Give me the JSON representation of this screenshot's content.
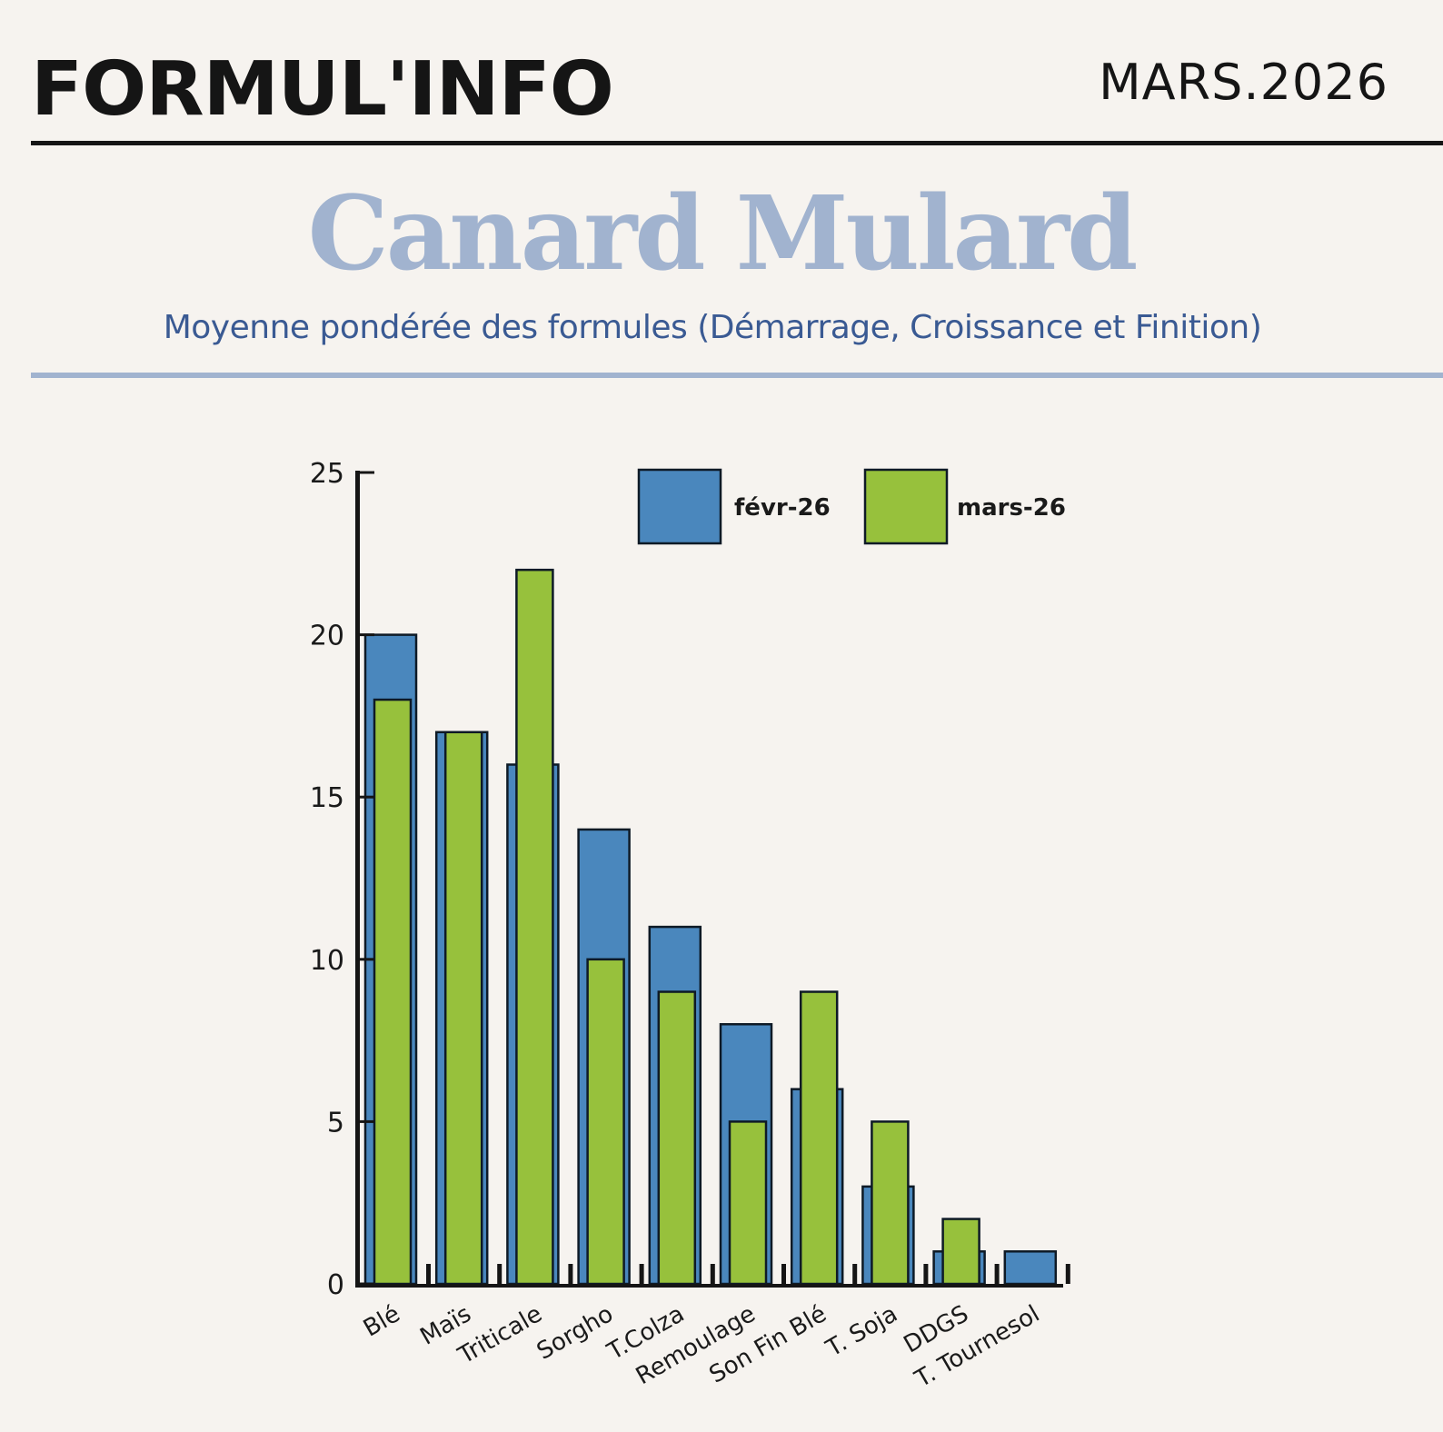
{
  "header": {
    "brand": "FORMUL'INFO",
    "issue": "MARS.2026"
  },
  "title": "Canard Mulard",
  "subtitle": "Moyenne pondérée des formules (Démarrage, Croissance et Finition)",
  "colors": {
    "series_1": "#4a87bd",
    "series_2": "#97c13c",
    "title": "#a1b3cf",
    "subtitle": "#3a5a93",
    "background": "#f6f3ef"
  },
  "legend": {
    "items": [
      {
        "label": "févr-26",
        "color": "#4a87bd"
      },
      {
        "label": "mars-26",
        "color": "#97c13c"
      }
    ]
  },
  "chart_data": {
    "type": "bar",
    "title": "Canard Mulard",
    "subtitle": "Moyenne pondérée des formules (Démarrage, Croissance et Finition)",
    "xlabel": "",
    "ylabel": "",
    "ylim": [
      0,
      25
    ],
    "yticks": [
      0,
      5,
      10,
      15,
      20,
      25
    ],
    "grid": false,
    "legend_position": "top-right",
    "categories": [
      "Blé",
      "Maïs",
      "Triticale",
      "Sorgho",
      "T.Colza",
      "Remoulage",
      "Son Fin Blé",
      "T. Soja",
      "DDGS",
      "T. Tournesol"
    ],
    "series": [
      {
        "name": "févr-26",
        "color": "#4a87bd",
        "values": [
          20,
          17,
          16,
          14,
          11,
          8,
          6,
          3,
          1,
          1
        ]
      },
      {
        "name": "mars-26",
        "color": "#97c13c",
        "values": [
          18,
          17,
          22,
          10,
          9,
          5,
          9,
          5,
          2,
          0
        ]
      }
    ]
  }
}
